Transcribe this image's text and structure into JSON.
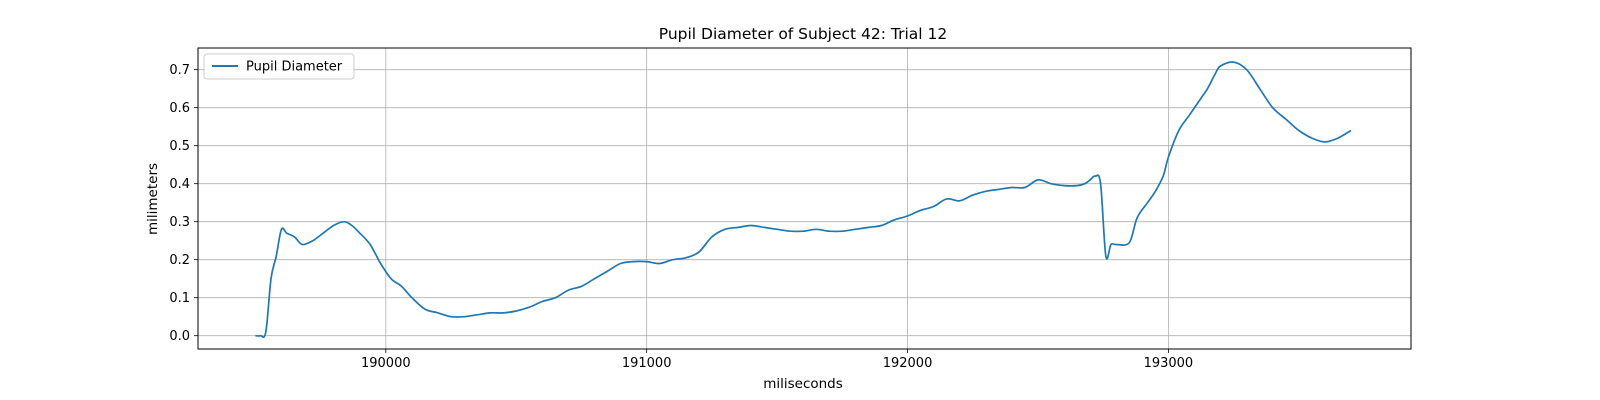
{
  "chart_data": {
    "type": "line",
    "title": "Pupil Diameter of Subject 42: Trial 12",
    "xlabel": "miliseconds",
    "ylabel": "milimeters",
    "xlim": [
      189280,
      193930
    ],
    "ylim": [
      -0.035,
      0.757
    ],
    "x_ticks": [
      190000,
      191000,
      192000,
      193000
    ],
    "x_tick_labels": [
      "190000",
      "191000",
      "192000",
      "193000"
    ],
    "y_ticks": [
      0.0,
      0.1,
      0.2,
      0.3,
      0.4,
      0.5,
      0.6,
      0.7
    ],
    "y_tick_labels": [
      "0.0",
      "0.1",
      "0.2",
      "0.3",
      "0.4",
      "0.5",
      "0.6",
      "0.7"
    ],
    "grid": true,
    "legend_position": "top-left",
    "series": [
      {
        "name": "Pupil Diameter",
        "color": "#1f77b4",
        "x": [
          189500,
          189520,
          189540,
          189560,
          189580,
          189600,
          189620,
          189650,
          189680,
          189720,
          189760,
          189800,
          189840,
          189870,
          189900,
          189940,
          189980,
          190020,
          190060,
          190100,
          190150,
          190200,
          190250,
          190300,
          190350,
          190400,
          190450,
          190500,
          190550,
          190600,
          190650,
          190700,
          190750,
          190800,
          190850,
          190900,
          190950,
          191000,
          191050,
          191100,
          191150,
          191200,
          191250,
          191300,
          191350,
          191400,
          191450,
          191500,
          191550,
          191600,
          191650,
          191700,
          191750,
          191800,
          191850,
          191900,
          191950,
          192000,
          192050,
          192100,
          192150,
          192200,
          192250,
          192300,
          192350,
          192400,
          192450,
          192500,
          192550,
          192600,
          192650,
          192680,
          192700,
          192720,
          192740,
          192760,
          192780,
          192800,
          192850,
          192880,
          192920,
          192950,
          192980,
          193000,
          193040,
          193080,
          193120,
          193150,
          193180,
          193200,
          193250,
          193300,
          193350,
          193400,
          193450,
          193500,
          193550,
          193600,
          193650,
          193700
        ],
        "values": [
          0.0,
          0.0,
          0.01,
          0.15,
          0.21,
          0.28,
          0.27,
          0.26,
          0.24,
          0.25,
          0.27,
          0.29,
          0.3,
          0.29,
          0.27,
          0.24,
          0.19,
          0.15,
          0.13,
          0.1,
          0.07,
          0.06,
          0.05,
          0.05,
          0.055,
          0.06,
          0.06,
          0.065,
          0.075,
          0.09,
          0.1,
          0.12,
          0.13,
          0.15,
          0.17,
          0.19,
          0.195,
          0.195,
          0.19,
          0.2,
          0.205,
          0.22,
          0.26,
          0.28,
          0.285,
          0.29,
          0.285,
          0.28,
          0.275,
          0.275,
          0.28,
          0.275,
          0.275,
          0.28,
          0.285,
          0.29,
          0.305,
          0.315,
          0.33,
          0.34,
          0.36,
          0.355,
          0.37,
          0.38,
          0.385,
          0.39,
          0.39,
          0.41,
          0.4,
          0.395,
          0.395,
          0.4,
          0.41,
          0.42,
          0.4,
          0.21,
          0.24,
          0.24,
          0.245,
          0.31,
          0.35,
          0.38,
          0.42,
          0.47,
          0.54,
          0.58,
          0.62,
          0.65,
          0.69,
          0.71,
          0.72,
          0.7,
          0.65,
          0.6,
          0.57,
          0.54,
          0.52,
          0.51,
          0.52,
          0.54
        ]
      }
    ]
  }
}
